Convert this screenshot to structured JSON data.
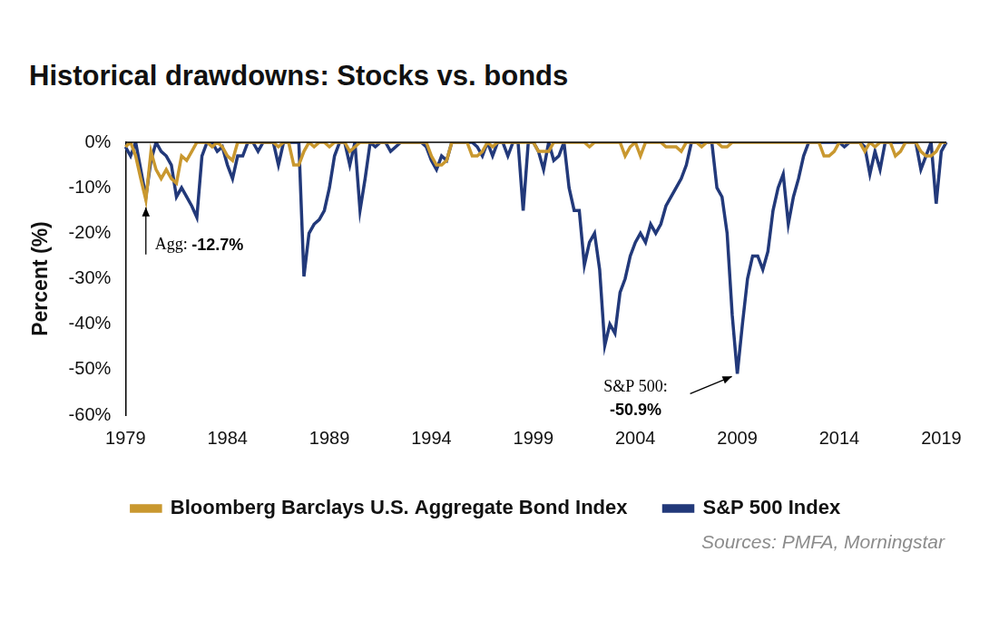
{
  "chart_data": {
    "type": "line",
    "title": "Historical drawdowns: Stocks vs. bonds",
    "y_label": "Percent (%)",
    "source": "Sources: PMFA, Morningstar",
    "categories": [
      "1979",
      null,
      null,
      null,
      null,
      null,
      null,
      null,
      null,
      null,
      null,
      null,
      null,
      null,
      null,
      null,
      null,
      null,
      null,
      null,
      "1984",
      null,
      null,
      null,
      null,
      null,
      null,
      null,
      null,
      null,
      null,
      null,
      null,
      null,
      null,
      null,
      null,
      null,
      null,
      null,
      "1989",
      null,
      null,
      null,
      null,
      null,
      null,
      null,
      null,
      null,
      null,
      null,
      null,
      null,
      null,
      null,
      null,
      null,
      null,
      null,
      "1994",
      null,
      null,
      null,
      null,
      null,
      null,
      null,
      null,
      null,
      null,
      null,
      null,
      null,
      null,
      null,
      null,
      null,
      null,
      null,
      "1999",
      null,
      null,
      null,
      null,
      null,
      null,
      null,
      null,
      null,
      null,
      null,
      null,
      null,
      null,
      null,
      null,
      null,
      null,
      null,
      "2004",
      null,
      null,
      null,
      null,
      null,
      null,
      null,
      null,
      null,
      null,
      null,
      null,
      null,
      null,
      null,
      null,
      null,
      null,
      null,
      "2009",
      null,
      null,
      null,
      null,
      null,
      null,
      null,
      null,
      null,
      null,
      null,
      null,
      null,
      null,
      null,
      null,
      null,
      null,
      null,
      "2014",
      null,
      null,
      null,
      null,
      null,
      null,
      null,
      null,
      null,
      null,
      null,
      null,
      null,
      null,
      null,
      null,
      null,
      null,
      null,
      "2019",
      null
    ],
    "series": [
      {
        "name": "S&P 500 Index",
        "color": "#22397a",
        "values": [
          -1,
          -3,
          0,
          -6,
          -12,
          -4,
          0,
          -2,
          -3,
          -5,
          -12,
          -10,
          -12,
          -14,
          -16.5,
          -3,
          0,
          0,
          -2,
          -1,
          -5,
          -8,
          -3,
          -3,
          0,
          0,
          -2,
          0,
          0,
          0,
          -5,
          0,
          0,
          0,
          0,
          -29.5,
          -20,
          -18,
          -17,
          -15,
          -10,
          -3,
          0,
          0,
          -5,
          0,
          -15,
          -8,
          0,
          -1,
          0,
          0,
          -2,
          -1,
          0,
          0,
          0,
          0,
          0,
          -1,
          -4,
          -6,
          -3,
          -4,
          0,
          0,
          0,
          0,
          0,
          -1,
          -3,
          0,
          -3,
          0,
          0,
          -3,
          0,
          0,
          -15,
          0,
          0,
          -2,
          -6,
          0,
          -4,
          -3,
          0,
          -10,
          -15,
          -15,
          -27,
          -22,
          -20,
          -28,
          -44.7,
          -40,
          -42,
          -33,
          -30,
          -25,
          -22,
          -20,
          -22,
          -18,
          -20,
          -18,
          -14,
          -12,
          -10,
          -8,
          -5,
          0,
          0,
          0,
          0,
          0,
          -10,
          -12,
          -20,
          -38,
          -50.9,
          -40,
          -30,
          -25,
          -25,
          -28,
          -24,
          -15,
          -10,
          -7,
          -18,
          -12,
          -8,
          -3,
          0,
          0,
          0,
          0,
          0,
          0,
          0,
          -1,
          0,
          0,
          0,
          -1,
          -7,
          -2,
          -6,
          0,
          0,
          0,
          0,
          0,
          0,
          0,
          -6,
          -3,
          0,
          -13.5,
          -2,
          0
        ]
      },
      {
        "name": "Bloomberg Barclays U.S. Aggregate Bond Index",
        "color": "#c9982f",
        "values": [
          -1,
          0,
          -3,
          -8,
          -12.7,
          -2,
          -6,
          -8,
          -6,
          -8,
          -9,
          -3,
          -4,
          -2,
          0,
          0,
          0,
          -1,
          0,
          -1,
          -3,
          -4,
          0,
          0,
          0,
          0,
          0,
          0,
          0,
          0,
          -1,
          0,
          0,
          -5,
          -5,
          -2,
          0,
          -1,
          0,
          0,
          -1,
          0,
          0,
          0,
          -2,
          -1,
          0,
          0,
          0,
          0,
          0,
          0,
          0,
          0,
          0,
          0,
          0,
          0,
          0,
          0,
          -3,
          -5,
          -5,
          -4,
          0,
          0,
          0,
          0,
          -3,
          -3,
          -2,
          0,
          -1,
          0,
          0,
          0,
          0,
          0,
          0,
          0,
          0,
          -2,
          -2,
          -2,
          0,
          0,
          0,
          0,
          0,
          0,
          0,
          -1,
          0,
          0,
          0,
          0,
          0,
          0,
          -3,
          -1,
          0,
          -3,
          0,
          0,
          0,
          0,
          -1,
          -1,
          -1,
          -2,
          0,
          0,
          0,
          -1,
          0,
          0,
          0,
          -1,
          -1,
          0,
          0,
          0,
          0,
          0,
          0,
          0,
          0,
          0,
          0,
          0,
          0,
          0,
          0,
          0,
          0,
          0,
          0,
          -3,
          -3,
          -2,
          0,
          0,
          0,
          0,
          0,
          -2,
          0,
          -1,
          0,
          0,
          0,
          -3,
          -2,
          0,
          0,
          0,
          -2,
          -3,
          -3,
          -2,
          0,
          0
        ]
      }
    ],
    "ylim": [
      -60,
      0
    ],
    "yticks": [
      {
        "value": -60,
        "label": "-60%"
      },
      {
        "value": -50,
        "label": "-50%"
      },
      {
        "value": -40,
        "label": "-40%"
      },
      {
        "value": -30,
        "label": "-30%"
      },
      {
        "value": -20,
        "label": "-20%"
      },
      {
        "value": -10,
        "label": "-10%"
      },
      {
        "value": 0,
        "label": "0%"
      }
    ],
    "grid": false,
    "legend": "bottom",
    "annotations": [
      {
        "series": "Bloomberg Barclays U.S. Aggregate Bond Index",
        "text": "Agg:",
        "value": -12.7,
        "label": "-12.7%"
      },
      {
        "series": "S&P 500 Index",
        "text": "S&P 500:",
        "value": -50.9,
        "label": "-50.9%"
      }
    ]
  }
}
